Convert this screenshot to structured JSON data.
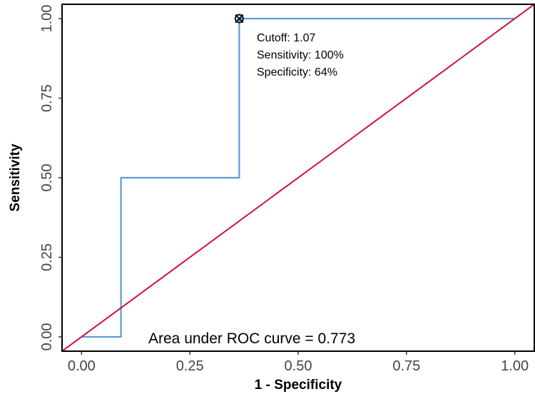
{
  "chart_data": {
    "type": "line",
    "title": "",
    "xlabel": "1 - Specificity",
    "ylabel": "Sensitivity",
    "xlim": [
      -0.045,
      1.045
    ],
    "ylim": [
      -0.045,
      1.045
    ],
    "x_ticks": [
      "0.00",
      "0.25",
      "0.50",
      "0.75",
      "1.00"
    ],
    "y_ticks": [
      "0.00",
      "0.25",
      "0.50",
      "0.75",
      "1.00"
    ],
    "grid": false,
    "series": [
      {
        "style": "step",
        "color": "#5b9bd5",
        "x": [
          0.0,
          0.091,
          0.091,
          0.364,
          0.364,
          1.0
        ],
        "y": [
          0.0,
          0.0,
          0.5,
          0.5,
          1.0,
          1.0
        ]
      },
      {
        "style": "diagonal reference",
        "color": "#d0103a",
        "x": [
          0.0,
          1.0
        ],
        "y": [
          0.0,
          1.0
        ]
      }
    ],
    "optimal_point": {
      "x": 0.364,
      "y": 1.0
    },
    "annotations": {
      "cutoff": "Cutoff: 1.07",
      "sensitivity": "Sensitivity: 100%",
      "specificity": "Specificity: 64%",
      "auc": "Area under ROC curve =  0.773"
    }
  }
}
